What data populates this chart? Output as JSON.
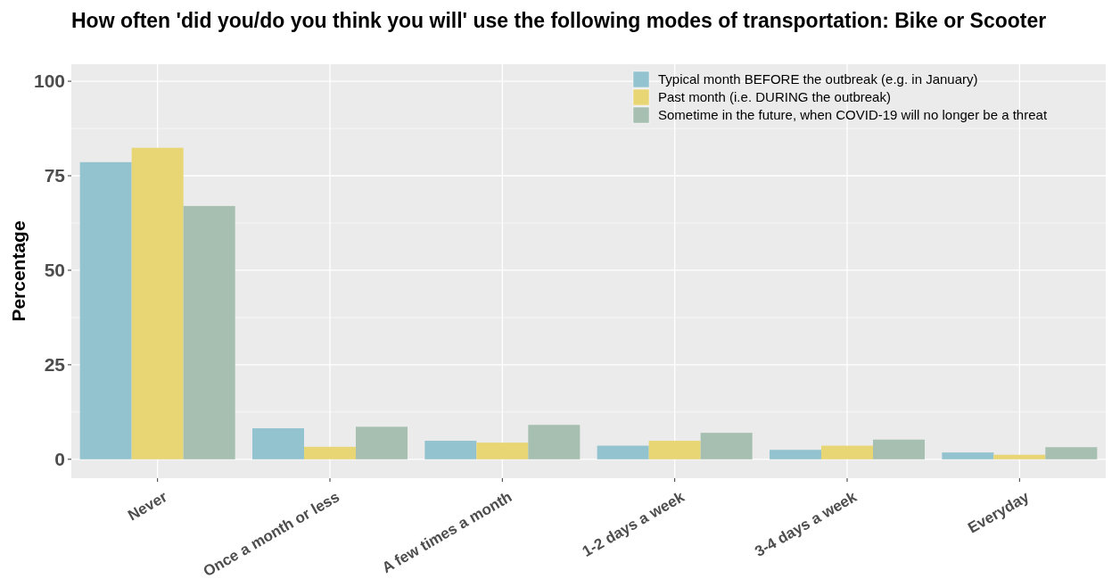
{
  "chart_data": {
    "type": "bar",
    "title": "How often 'did you/do you think you will' use the following modes of transportation: Bike or Scooter",
    "ylabel": "Percentage",
    "categories": [
      "Never",
      "Once a month or less",
      "A few times a month",
      "1-2 days a week",
      "3-4 days a week",
      "Everyday"
    ],
    "series": [
      {
        "name": "Typical month BEFORE the outbreak (e.g. in January)",
        "color": "#93c3cf",
        "values": [
          78.6,
          8.2,
          4.9,
          3.6,
          2.5,
          1.8
        ]
      },
      {
        "name": "Past month (i.e. DURING the outbreak)",
        "color": "#e8d574",
        "values": [
          82.4,
          3.3,
          4.4,
          4.9,
          3.6,
          1.2
        ]
      },
      {
        "name": "Sometime in the future, when COVID-19 will no longer be a threat",
        "color": "#a6bfb0",
        "values": [
          67.0,
          8.6,
          9.1,
          7.0,
          5.2,
          3.2
        ]
      }
    ],
    "ylim": [
      -5,
      104.5
    ],
    "yticks": [
      0,
      25,
      50,
      75,
      100
    ],
    "grid": true,
    "legend": "top right"
  }
}
